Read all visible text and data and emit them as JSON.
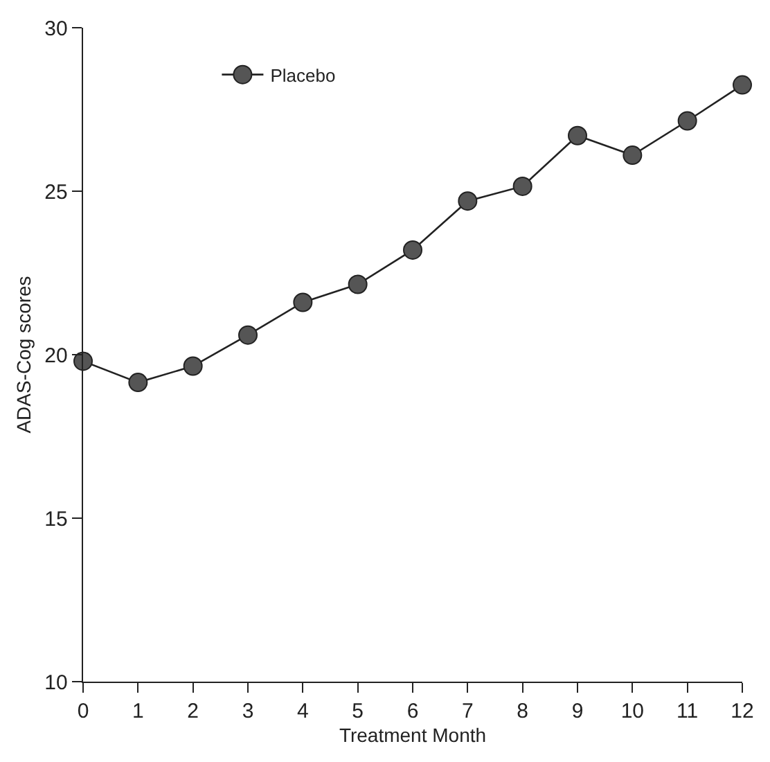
{
  "chart_data": {
    "type": "line",
    "xlabel": "Treatment Month",
    "ylabel": "ADAS-Cog scores",
    "x": [
      0,
      1,
      2,
      3,
      4,
      5,
      6,
      7,
      8,
      9,
      10,
      11,
      12
    ],
    "series": [
      {
        "name": "Placebo",
        "color": "#555555",
        "values": [
          19.8,
          19.15,
          19.65,
          20.6,
          21.6,
          22.15,
          23.2,
          24.7,
          25.15,
          26.7,
          26.1,
          27.15,
          28.25
        ]
      }
    ],
    "xlim": [
      0,
      12
    ],
    "xticks": [
      0,
      1,
      2,
      3,
      4,
      5,
      6,
      7,
      8,
      9,
      10,
      11,
      12
    ],
    "ylim": [
      10,
      30
    ],
    "yticks": [
      10,
      15,
      20,
      25,
      30
    ],
    "legend": "top left",
    "marker": "circle",
    "line_style": "solid"
  }
}
